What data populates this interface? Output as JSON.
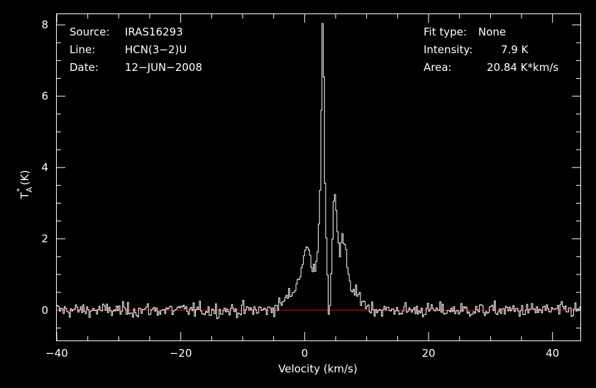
{
  "colors": {
    "background": "#000000",
    "foreground": "#ffffff",
    "baseline": "#cc0000"
  },
  "chart_data": {
    "type": "line",
    "title": "",
    "xlabel": "Velocity (km/s)",
    "ylabel_main": "T",
    "ylabel_sup": "*",
    "ylabel_sub": "A",
    "ylabel_unit": "(K)",
    "xlim": [
      -40,
      44.5
    ],
    "ylim": [
      -0.85,
      8.3
    ],
    "x_major_ticks": [
      -40,
      -20,
      0,
      20,
      40
    ],
    "x_tick_labels": [
      "−40",
      "−20",
      "0",
      "20",
      "40"
    ],
    "x_minor_step": 5,
    "y_major_ticks": [
      0,
      2,
      4,
      6,
      8
    ],
    "y_tick_labels": [
      "0",
      "2",
      "4",
      "6",
      "8"
    ],
    "y_minor_step": 0.5,
    "grid": false,
    "baseline_value": 0,
    "noise_rms": 0.1,
    "channel_width": 0.2,
    "spectrum_key_points": {
      "velocity": [
        -6,
        -4,
        -3,
        -2,
        -1,
        0,
        0.5,
        1,
        1.5,
        2,
        2.4,
        2.8,
        3.0,
        3.2,
        3.5,
        3.8,
        4.0,
        4.3,
        4.7,
        5.0,
        5.5,
        6.0,
        6.5,
        7.0,
        7.5,
        8,
        9,
        10,
        12
      ],
      "intensity": [
        0,
        0.15,
        0.35,
        0.5,
        0.9,
        1.65,
        1.75,
        1.3,
        1.2,
        1.6,
        3.5,
        7.9,
        6.5,
        3.5,
        1.2,
        -0.05,
        0.2,
        1.5,
        3.6,
        2.8,
        1.5,
        2.0,
        1.7,
        0.9,
        0.6,
        0.45,
        0.35,
        0.1,
        0
      ]
    }
  },
  "info": {
    "left": [
      {
        "label": "Source:",
        "value": "IRAS16293"
      },
      {
        "label": "Line:",
        "value": "HCN(3−2)U"
      },
      {
        "label": "Date:",
        "value": "12−JUN−2008"
      }
    ],
    "right": [
      {
        "label": "Fit type:",
        "value": "None"
      },
      {
        "label": "Intensity:",
        "value": "7.9 K"
      },
      {
        "label": "Area:",
        "value": "20.84 K*km/s"
      }
    ]
  }
}
